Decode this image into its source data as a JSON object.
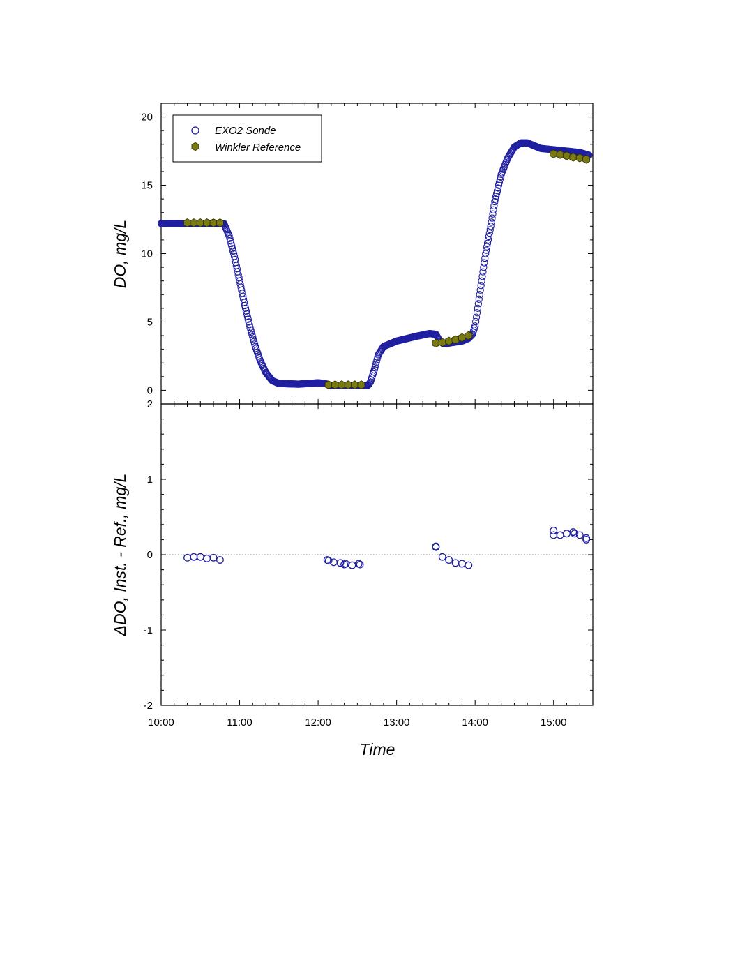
{
  "chart_data": [
    {
      "type": "scatter",
      "panel": "top",
      "ylabel": "DO, mg/L",
      "xlabel": "",
      "xlim": [
        "10:00",
        "15:30"
      ],
      "ylim": [
        -1,
        21
      ],
      "yticks": [
        0,
        5,
        10,
        15,
        20
      ],
      "ytick_labels": [
        "0",
        "5",
        "10",
        "15",
        "20"
      ],
      "legend_position": "top-left",
      "grid": false,
      "series": [
        {
          "name": "EXO2 Sonde",
          "marker": "open-circle",
          "color": "#1f1fa0",
          "anchors": [
            [
              "10:00",
              12.2
            ],
            [
              "10:48",
              12.2
            ],
            [
              "10:52",
              11.3
            ],
            [
              "10:56",
              9.8
            ],
            [
              "11:00",
              8.0
            ],
            [
              "11:04",
              6.2
            ],
            [
              "11:08",
              4.6
            ],
            [
              "11:12",
              3.2
            ],
            [
              "11:16",
              2.1
            ],
            [
              "11:20",
              1.3
            ],
            [
              "11:25",
              0.7
            ],
            [
              "11:30",
              0.5
            ],
            [
              "11:45",
              0.45
            ],
            [
              "12:00",
              0.55
            ],
            [
              "12:05",
              0.5
            ],
            [
              "12:10",
              0.35
            ],
            [
              "12:25",
              0.35
            ],
            [
              "12:38",
              0.35
            ],
            [
              "12:40",
              0.6
            ],
            [
              "12:43",
              1.5
            ],
            [
              "12:46",
              2.6
            ],
            [
              "12:50",
              3.2
            ],
            [
              "13:00",
              3.6
            ],
            [
              "13:15",
              3.95
            ],
            [
              "13:25",
              4.15
            ],
            [
              "13:30",
              4.1
            ],
            [
              "13:33",
              3.6
            ],
            [
              "13:36",
              3.4
            ],
            [
              "13:50",
              3.6
            ],
            [
              "13:55",
              3.8
            ],
            [
              "13:58",
              4.1
            ],
            [
              "14:00",
              4.7
            ],
            [
              "14:02",
              6.0
            ],
            [
              "14:05",
              8.0
            ],
            [
              "14:08",
              10.0
            ],
            [
              "14:12",
              12.0
            ],
            [
              "14:15",
              13.8
            ],
            [
              "14:20",
              15.8
            ],
            [
              "14:25",
              17.0
            ],
            [
              "14:30",
              17.8
            ],
            [
              "14:35",
              18.1
            ],
            [
              "14:40",
              18.1
            ],
            [
              "14:45",
              17.9
            ],
            [
              "14:50",
              17.7
            ],
            [
              "15:00",
              17.6
            ],
            [
              "15:10",
              17.5
            ],
            [
              "15:20",
              17.4
            ],
            [
              "15:27",
              17.2
            ]
          ]
        },
        {
          "name": "Winkler Reference",
          "marker": "filled-hexagon",
          "color": "#7a7a12",
          "points": [
            [
              "10:20",
              12.25
            ],
            [
              "10:25",
              12.25
            ],
            [
              "10:30",
              12.25
            ],
            [
              "10:35",
              12.25
            ],
            [
              "10:40",
              12.25
            ],
            [
              "10:45",
              12.25
            ],
            [
              "12:08",
              0.4
            ],
            [
              "12:13",
              0.4
            ],
            [
              "12:18",
              0.4
            ],
            [
              "12:23",
              0.4
            ],
            [
              "12:28",
              0.4
            ],
            [
              "12:33",
              0.4
            ],
            [
              "13:30",
              3.45
            ],
            [
              "13:35",
              3.5
            ],
            [
              "13:40",
              3.6
            ],
            [
              "13:45",
              3.7
            ],
            [
              "13:50",
              3.85
            ],
            [
              "13:55",
              4.0
            ],
            [
              "15:00",
              17.3
            ],
            [
              "15:05",
              17.25
            ],
            [
              "15:10",
              17.15
            ],
            [
              "15:15",
              17.05
            ],
            [
              "15:20",
              17.0
            ],
            [
              "15:25",
              16.9
            ]
          ]
        }
      ]
    },
    {
      "type": "scatter",
      "panel": "bottom",
      "ylabel": "ΔDO, Inst. - Ref., mg/L",
      "xlabel": "Time",
      "xlim": [
        "10:00",
        "15:30"
      ],
      "xticks": [
        "10:00",
        "11:00",
        "12:00",
        "13:00",
        "14:00",
        "15:00"
      ],
      "ylim": [
        -2,
        2
      ],
      "yticks": [
        -2,
        -1,
        0,
        1,
        2
      ],
      "ytick_labels": [
        "-2",
        "-1",
        "0",
        "1",
        "2"
      ],
      "zero_line": "dotted",
      "grid": false,
      "series": [
        {
          "name": "EXO2 Sonde",
          "marker": "open-circle",
          "color": "#1f1fa0",
          "points": [
            [
              "10:20",
              -0.04
            ],
            [
              "10:25",
              -0.03
            ],
            [
              "10:30",
              -0.03
            ],
            [
              "10:35",
              -0.05
            ],
            [
              "10:40",
              -0.04
            ],
            [
              "10:45",
              -0.07
            ],
            [
              "12:07",
              -0.07
            ],
            [
              "12:08",
              -0.08
            ],
            [
              "12:12",
              -0.1
            ],
            [
              "12:17",
              -0.11
            ],
            [
              "12:20",
              -0.13
            ],
            [
              "12:21",
              -0.12
            ],
            [
              "12:26",
              -0.14
            ],
            [
              "12:31",
              -0.12
            ],
            [
              "12:32",
              -0.13
            ],
            [
              "13:30",
              0.11
            ],
            [
              "13:30",
              0.1
            ],
            [
              "13:35",
              -0.03
            ],
            [
              "13:40",
              -0.07
            ],
            [
              "13:45",
              -0.11
            ],
            [
              "13:50",
              -0.12
            ],
            [
              "13:55",
              -0.14
            ],
            [
              "15:00",
              0.32
            ],
            [
              "15:00",
              0.26
            ],
            [
              "15:05",
              0.26
            ],
            [
              "15:10",
              0.28
            ],
            [
              "15:15",
              0.3
            ],
            [
              "15:16",
              0.28
            ],
            [
              "15:20",
              0.26
            ],
            [
              "15:25",
              0.22
            ],
            [
              "15:25",
              0.2
            ]
          ]
        }
      ]
    }
  ]
}
